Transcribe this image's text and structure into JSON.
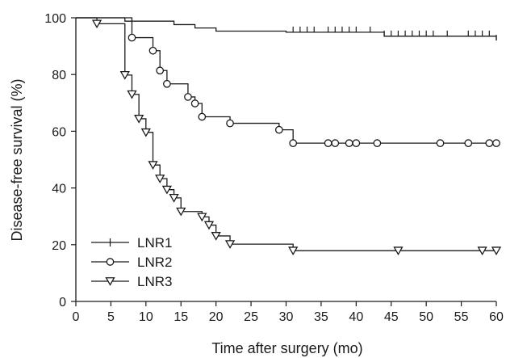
{
  "chart_data": {
    "type": "line",
    "step": true,
    "xlabel": "Time after surgery (mo)",
    "ylabel": "Disease-free survival (%)",
    "xlim": [
      0,
      60
    ],
    "ylim": [
      0,
      100
    ],
    "xticks": [
      "0",
      "5",
      "10",
      "15",
      "20",
      "25",
      "30",
      "35",
      "40",
      "45",
      "50",
      "55",
      "60"
    ],
    "yticks": [
      "0",
      "20",
      "40",
      "60",
      "80",
      "100"
    ],
    "grid": false,
    "legend": "bottom-left",
    "series": [
      {
        "name": "LNR1",
        "marker": "tick",
        "color": "#1a1a1a",
        "steps": [
          [
            0,
            100
          ],
          [
            7,
            98.8
          ],
          [
            14,
            97.6
          ],
          [
            17,
            96.4
          ],
          [
            20,
            95.3
          ],
          [
            30,
            94.9
          ],
          [
            44,
            93.5
          ],
          [
            60,
            92.0
          ]
        ],
        "censored": [
          [
            31,
            94.9
          ],
          [
            32,
            94.9
          ],
          [
            33,
            94.9
          ],
          [
            34,
            94.9
          ],
          [
            36,
            94.9
          ],
          [
            37,
            94.9
          ],
          [
            38,
            94.9
          ],
          [
            39,
            94.9
          ],
          [
            40,
            94.9
          ],
          [
            42,
            94.9
          ],
          [
            44,
            93.5
          ],
          [
            45,
            93.5
          ],
          [
            46,
            93.5
          ],
          [
            47,
            93.5
          ],
          [
            48,
            93.5
          ],
          [
            49,
            93.5
          ],
          [
            50,
            93.5
          ],
          [
            51,
            93.5
          ],
          [
            53,
            93.5
          ],
          [
            56,
            93.5
          ],
          [
            57,
            93.5
          ],
          [
            58,
            93.5
          ],
          [
            59,
            93.5
          ],
          [
            60,
            92.0
          ]
        ]
      },
      {
        "name": "LNR2",
        "marker": "circle",
        "color": "#1a1a1a",
        "steps": [
          [
            0,
            100
          ],
          [
            8,
            93.0
          ],
          [
            11,
            88.4
          ],
          [
            12,
            81.4
          ],
          [
            13,
            76.7
          ],
          [
            16,
            72.1
          ],
          [
            17,
            69.8
          ],
          [
            18,
            65.1
          ],
          [
            22,
            62.8
          ],
          [
            29,
            60.5
          ],
          [
            31,
            55.8
          ],
          [
            60,
            55.8
          ]
        ],
        "censored": [
          [
            8,
            93.0
          ],
          [
            11,
            88.4
          ],
          [
            12,
            81.4
          ],
          [
            13,
            76.7
          ],
          [
            16,
            72.1
          ],
          [
            17,
            69.8
          ],
          [
            18,
            65.1
          ],
          [
            22,
            62.8
          ],
          [
            29,
            60.5
          ],
          [
            31,
            55.8
          ],
          [
            36,
            55.8
          ],
          [
            37,
            55.8
          ],
          [
            39,
            55.8
          ],
          [
            40,
            55.8
          ],
          [
            43,
            55.8
          ],
          [
            52,
            55.8
          ],
          [
            56,
            55.8
          ],
          [
            59,
            55.8
          ],
          [
            60,
            55.8
          ]
        ]
      },
      {
        "name": "LNR3",
        "marker": "triangle-down",
        "color": "#1a1a1a",
        "steps": [
          [
            0,
            100
          ],
          [
            3,
            97.9
          ],
          [
            7,
            79.8
          ],
          [
            8,
            73.0
          ],
          [
            9,
            64.4
          ],
          [
            10,
            59.6
          ],
          [
            11,
            48.1
          ],
          [
            12,
            43.3
          ],
          [
            13,
            39.4
          ],
          [
            14,
            36.5
          ],
          [
            15,
            31.7
          ],
          [
            18,
            29.8
          ],
          [
            19,
            26.9
          ],
          [
            20,
            23.1
          ],
          [
            22,
            20.2
          ],
          [
            31,
            17.9
          ],
          [
            60,
            17.9
          ]
        ],
        "censored": [
          [
            3,
            97.9
          ],
          [
            7,
            79.8
          ],
          [
            8,
            73.0
          ],
          [
            9,
            64.4
          ],
          [
            10,
            59.6
          ],
          [
            11,
            48.1
          ],
          [
            12,
            43.3
          ],
          [
            13,
            39.4
          ],
          [
            14,
            36.5
          ],
          [
            15,
            31.7
          ],
          [
            18,
            29.8
          ],
          [
            19,
            26.9
          ],
          [
            20,
            23.1
          ],
          [
            22,
            20.2
          ],
          [
            31,
            17.9
          ],
          [
            46,
            17.9
          ],
          [
            58,
            17.9
          ],
          [
            60,
            17.9
          ]
        ]
      }
    ]
  }
}
